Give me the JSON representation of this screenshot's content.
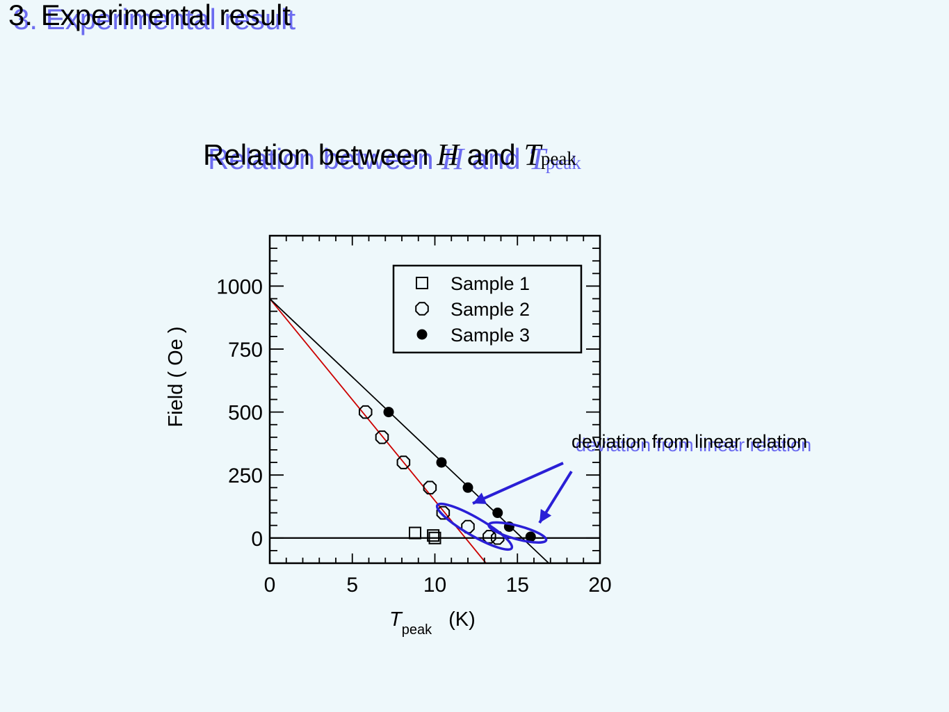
{
  "slide": {
    "title": "3. Experimental result"
  },
  "chart_heading": {
    "prefix": "Relation between ",
    "var_h": "H",
    "middle": " and ",
    "var_t": "T",
    "subscript": "peak"
  },
  "annotation": {
    "text": "deviation  from linear relation"
  },
  "colors": {
    "background": "#eef8fb",
    "title_shadow": "#6c6cf0",
    "fit_line_sample2": "#cc0000",
    "fit_line_sample3": "#000000",
    "highlight": "#2a1fd6"
  },
  "chart_data": {
    "type": "scatter",
    "xlabel_italic": "T",
    "xlabel_sub": "peak",
    "xlabel_unit": "(K)",
    "ylabel": "Field ( Oe )",
    "xlim": [
      0,
      20
    ],
    "ylim": [
      -100,
      1200
    ],
    "x_ticks": [
      "0",
      "5",
      "10",
      "15",
      "20"
    ],
    "y_ticks": [
      "0",
      "250",
      "500",
      "750",
      "1000"
    ],
    "legend_position": "top-right",
    "grid": false,
    "series": [
      {
        "name": "Sample 1",
        "marker": "open-square",
        "points": [
          [
            8.8,
            20
          ],
          [
            9.9,
            10
          ],
          [
            10.0,
            0
          ]
        ]
      },
      {
        "name": "Sample 2",
        "marker": "open-octagon",
        "points": [
          [
            5.8,
            500
          ],
          [
            6.8,
            400
          ],
          [
            8.1,
            300
          ],
          [
            9.7,
            200
          ],
          [
            10.5,
            100
          ],
          [
            12.0,
            45
          ],
          [
            13.3,
            5
          ],
          [
            13.8,
            0
          ]
        ]
      },
      {
        "name": "Sample 3",
        "marker": "filled-circle",
        "points": [
          [
            7.2,
            500
          ],
          [
            10.4,
            300
          ],
          [
            12.0,
            200
          ],
          [
            13.8,
            100
          ],
          [
            14.5,
            45
          ],
          [
            15.8,
            5
          ]
        ]
      }
    ],
    "fit_lines": [
      {
        "for": "Sample 2",
        "from": [
          0,
          950
        ],
        "to": [
          13.1,
          -100
        ]
      },
      {
        "for": "Sample 3",
        "from": [
          0,
          950
        ],
        "to": [
          16.9,
          -100
        ]
      }
    ],
    "highlights": [
      {
        "center": [
          12.4,
          45
        ],
        "rx_data": 2.6,
        "ry_data": 65,
        "rotation": 30
      },
      {
        "center": [
          15.0,
          22
        ],
        "rx_data": 1.8,
        "ry_data": 48,
        "rotation": 15
      }
    ]
  }
}
